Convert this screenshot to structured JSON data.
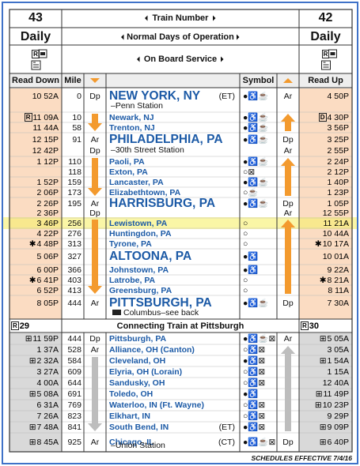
{
  "header": {
    "train_number_label": "Train Number",
    "days_label": "Normal Days of Operation",
    "service_label": "On Board Service",
    "reserved_symbol": "R",
    "left": {
      "train": "43",
      "days": "Daily"
    },
    "right": {
      "train": "42",
      "days": "Daily"
    },
    "columns": {
      "read_down": "Read Down",
      "mile": "Mile",
      "symbol": "Symbol",
      "read_up": "Read Up"
    }
  },
  "section1": [
    {
      "down": [
        "10 52A"
      ],
      "mile": 0,
      "dpar": [
        "Dp"
      ],
      "station": "NEW YORK, NY",
      "zone": "(ET)",
      "sub": "–Penn Station",
      "major": true,
      "symbol": "●♿☕",
      "updpar": [
        "Ar"
      ],
      "up": [
        "4 50P"
      ]
    },
    {
      "down_flag": "R",
      "down": [
        "11 09A"
      ],
      "mile": 10,
      "station": "Newark, NJ",
      "symbol": "●♿☕",
      "up_flag": "D",
      "up": [
        "4 30P"
      ]
    },
    {
      "down": [
        "11 44A"
      ],
      "mile": 58,
      "station": "Trenton, NJ",
      "symbol": "●♿☕",
      "up": [
        "3 56P"
      ]
    },
    {
      "down": [
        "12 15P",
        "12 42P"
      ],
      "mile": 91,
      "dpar": [
        "Ar",
        "Dp"
      ],
      "station": "PHILADELPHIA, PA",
      "sub": "–30th Street Station",
      "major": true,
      "symbol": "●♿☕",
      "updpar": [
        "Dp",
        "Ar"
      ],
      "up": [
        "3 25P",
        "2 55P"
      ]
    },
    {
      "down": [
        "1 12P"
      ],
      "mile": 110,
      "station": "Paoli, PA",
      "symbol": "●♿☕",
      "up": [
        "2 24P"
      ]
    },
    {
      "mile": 118,
      "station": "Exton, PA",
      "symbol": "○⊠",
      "up": [
        "2 12P"
      ]
    },
    {
      "down": [
        "1 52P"
      ],
      "mile": 159,
      "station": "Lancaster, PA",
      "symbol": "●♿☕",
      "up": [
        "1 40P"
      ]
    },
    {
      "down": [
        "2 06P"
      ],
      "mile": 173,
      "station": "Elizabethtown, PA",
      "symbol": "○☕",
      "up": [
        "1 23P"
      ]
    },
    {
      "down": [
        "2 26P",
        "2 36P"
      ],
      "mile": 195,
      "dpar": [
        "Ar",
        "Dp"
      ],
      "station": "HARRISBURG, PA",
      "major": true,
      "symbol": "●♿☕",
      "updpar": [
        "Dp",
        "Ar"
      ],
      "up": [
        "1 05P",
        "12 55P"
      ]
    },
    {
      "down": [
        "3 46P"
      ],
      "mile": 256,
      "station": "Lewistown, PA",
      "symbol": "○",
      "up": [
        "11 21A"
      ],
      "highlight": true
    },
    {
      "down": [
        "4 22P"
      ],
      "mile": 276,
      "station": "Huntingdon, PA",
      "symbol": "○",
      "up": [
        "10 44A"
      ]
    },
    {
      "down_flag": "✱",
      "down": [
        "4 48P"
      ],
      "mile": 313,
      "station": "Tyrone, PA",
      "symbol": "○",
      "up_flag": "✱",
      "up": [
        "10 17A"
      ]
    },
    {
      "down": [
        "5 06P"
      ],
      "mile": 327,
      "station": "ALTOONA, PA",
      "major": true,
      "symbol": "●♿",
      "up": [
        "10 01A"
      ]
    },
    {
      "down": [
        "6 00P"
      ],
      "mile": 366,
      "station": "Johnstown, PA",
      "symbol": "●♿",
      "up": [
        "9 22A"
      ]
    },
    {
      "down_flag": "✱",
      "down": [
        "6 41P"
      ],
      "mile": 403,
      "station": "Latrobe, PA",
      "symbol": "○",
      "up_flag": "✱",
      "up": [
        "8 21A"
      ]
    },
    {
      "down": [
        "6 52P"
      ],
      "mile": 413,
      "station": "Greensburg, PA",
      "symbol": "○",
      "up": [
        "8 11A"
      ]
    },
    {
      "down": [
        "8 05P"
      ],
      "mile": 444,
      "dpar": [
        "Ar"
      ],
      "station": "PITTSBURGH, PA",
      "sub": "Columbus–see back",
      "major": true,
      "symbol": "●♿☕",
      "updpar": [
        "Dp"
      ],
      "up": [
        "7 30A"
      ]
    }
  ],
  "connecting": {
    "left": "29",
    "title": "Connecting Train at Pittsburgh",
    "right": "30"
  },
  "section2": [
    {
      "down_flag": "⊞",
      "down": [
        "11 59P"
      ],
      "mile": 444,
      "dpar": [
        "Dp"
      ],
      "station": "Pittsburgh, PA",
      "symbol": "●♿☕⊠",
      "updpar": [
        "Ar"
      ],
      "up_flag": "⊞",
      "up": [
        "5 05A"
      ]
    },
    {
      "down": [
        "1 37A"
      ],
      "mile": 528,
      "dpar": [
        "Ar"
      ],
      "station": "Alliance, OH (Canton)",
      "symbol": "○♿⊠",
      "up": [
        "3 05A"
      ]
    },
    {
      "down_flag": "⊞",
      "down": [
        "2 32A"
      ],
      "mile": 584,
      "station": "Cleveland, OH",
      "symbol": "●♿⊠",
      "up_flag": "⊞",
      "up": [
        "1 54A"
      ]
    },
    {
      "down": [
        "3 27A"
      ],
      "mile": 609,
      "station": "Elyria, OH (Lorain)",
      "symbol": "○♿⊠",
      "up": [
        "1 15A"
      ]
    },
    {
      "down": [
        "4 00A"
      ],
      "mile": 644,
      "station": "Sandusky, OH",
      "symbol": "○♿⊠",
      "up": [
        "12 40A"
      ]
    },
    {
      "down_flag": "⊞",
      "down": [
        "5 08A"
      ],
      "mile": 691,
      "station": "Toledo, OH",
      "symbol": "●♿",
      "up_flag": "⊞",
      "up": [
        "11 49P"
      ]
    },
    {
      "down": [
        "6 31A"
      ],
      "mile": 769,
      "station": "Waterloo, IN (Ft. Wayne)",
      "symbol": "○♿⊠",
      "up_flag": "⊞",
      "up": [
        "10 23P"
      ]
    },
    {
      "down": [
        "7 26A"
      ],
      "mile": 823,
      "station": "Elkhart, IN",
      "symbol": "○♿⊠",
      "up": [
        "9 29P"
      ]
    },
    {
      "down_flag": "⊞",
      "down": [
        "7 48A"
      ],
      "mile": 841,
      "station": "South Bend, IN",
      "zone": "(ET)",
      "symbol": "●♿⊠",
      "up_flag": "⊞",
      "up": [
        "9 09P"
      ]
    },
    {
      "down_flag": "⊞",
      "down": [
        "8 45A"
      ],
      "mile": 925,
      "dpar": [
        "Ar"
      ],
      "station": "Chicago, IL",
      "zone": "(CT)",
      "sub": "–Union Station",
      "symbol": "●♿☕⊠",
      "updpar": [
        "Dp"
      ],
      "up_flag": "⊞",
      "up": [
        "6 40P"
      ]
    }
  ],
  "footer": "SCHEDULES EFFECTIVE 7/4/16"
}
